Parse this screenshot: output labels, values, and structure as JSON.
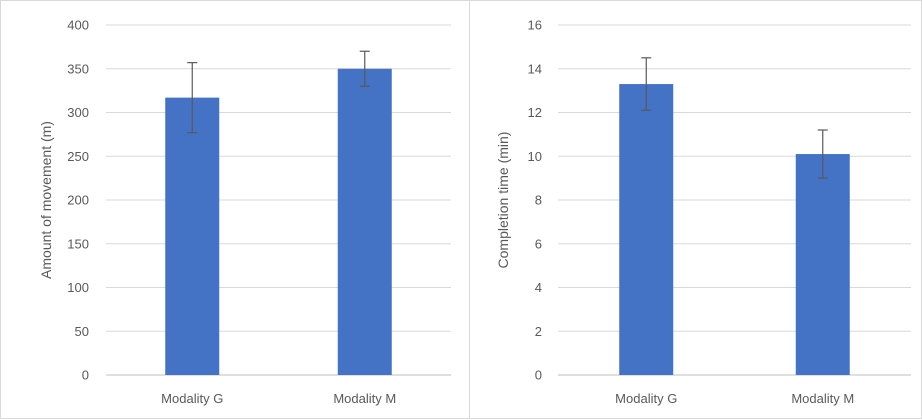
{
  "chart_data": [
    {
      "type": "bar",
      "categories": [
        "Modality G",
        "Modality M"
      ],
      "values": [
        317,
        350
      ],
      "error_bars": [
        40,
        20
      ],
      "title": "",
      "xlabel": "",
      "ylabel": "Amount of movement (m)",
      "ylim": [
        0,
        400
      ],
      "yticks": [
        0,
        50,
        100,
        150,
        200,
        250,
        300,
        350,
        400
      ],
      "grid": true,
      "bar_color": "#4472C4"
    },
    {
      "type": "bar",
      "categories": [
        "Modality G",
        "Modality M"
      ],
      "values": [
        13.3,
        10.1
      ],
      "error_bars": [
        1.2,
        1.1
      ],
      "title": "",
      "xlabel": "",
      "ylabel": "Completion time (min)",
      "ylim": [
        0,
        16
      ],
      "yticks": [
        0,
        2,
        4,
        6,
        8,
        10,
        12,
        14,
        16
      ],
      "grid": true,
      "bar_color": "#4472C4"
    }
  ]
}
